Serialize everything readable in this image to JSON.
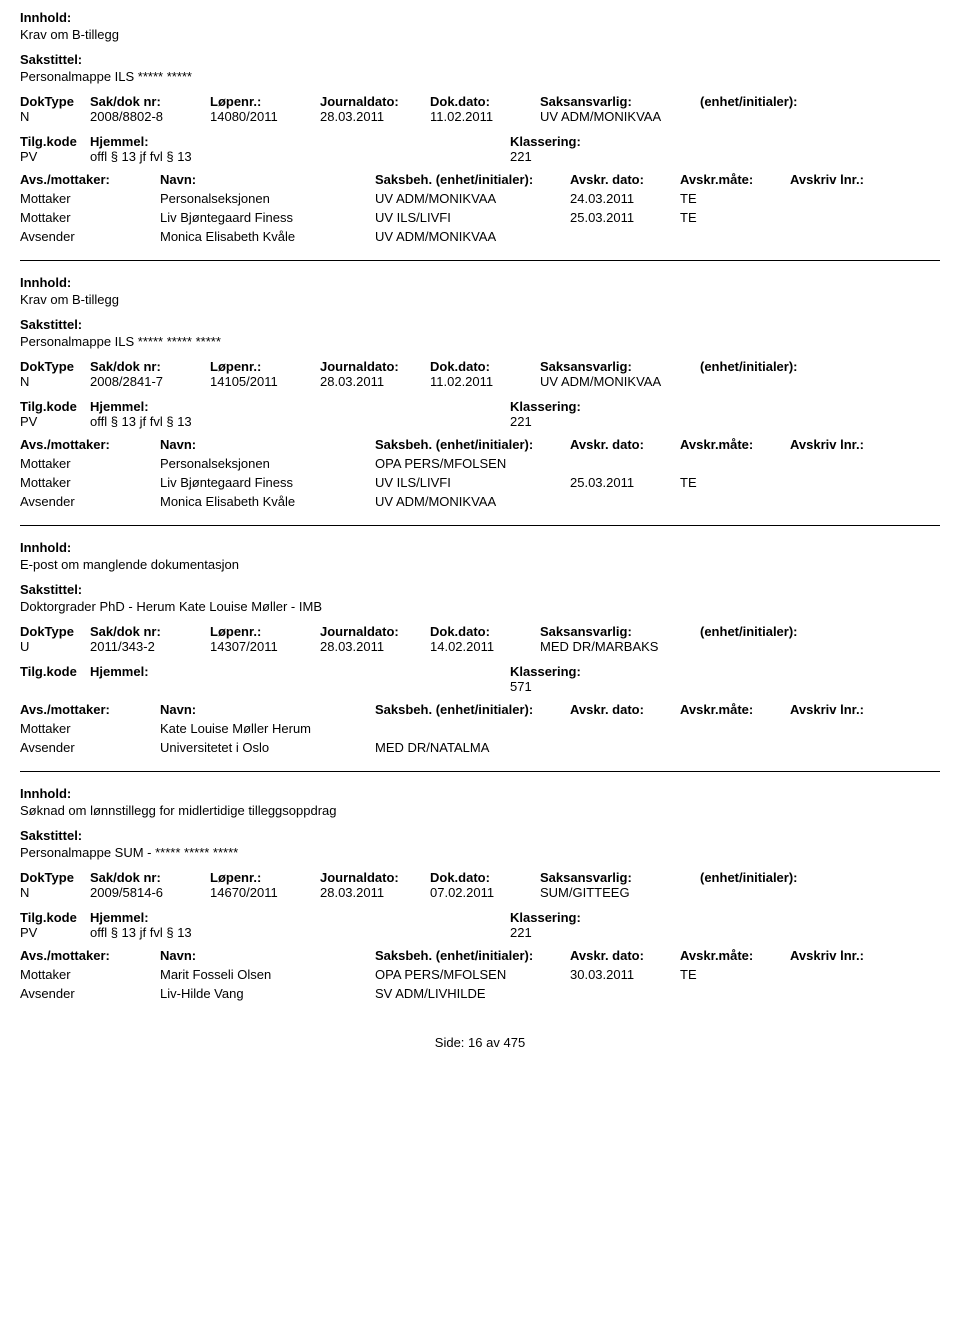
{
  "labels": {
    "innhold": "Innhold:",
    "sakstittel": "Sakstittel:",
    "doktype": "DokType",
    "sakdoknr": "Sak/dok nr:",
    "lopenr": "Løpenr.:",
    "journaldato": "Journaldato:",
    "dokdato": "Dok.dato:",
    "saksansvarlig": "Saksansvarlig:",
    "enhetinit": "(enhet/initialer):",
    "tilgkode": "Tilg.kode",
    "hjemmel": "Hjemmel:",
    "klassering": "Klassering:",
    "avsmottaker": "Avs./mottaker:",
    "navn": "Navn:",
    "saksbeh": "Saksbeh.",
    "saksbeh_suffix": "(enhet/initialer):",
    "avskrdato": "Avskr. dato:",
    "avskrmate": "Avskr.måte:",
    "avskrivlnr": "Avskriv lnr.:",
    "side": "Side:",
    "av": "av"
  },
  "page": {
    "current": "16",
    "total": "475"
  },
  "records": [
    {
      "innhold": "Krav om B-tillegg",
      "sakstittel": "Personalmappe ILS ***** *****",
      "doktype": "N",
      "sakdoknr": "2008/8802-8",
      "lopenr": "14080/2011",
      "journaldato": "28.03.2011",
      "dokdato": "11.02.2011",
      "saksansvarlig": "UV ADM/MONIKVAA",
      "tilgkode": "PV",
      "hjemmel": "offl § 13 jf fvl § 13",
      "klassering": "221",
      "parties": [
        {
          "role": "Mottaker",
          "name": "Personalseksjonen",
          "saksbeh": "UV ADM/MONIKVAA",
          "avskrdato": "24.03.2011",
          "avskrmate": "TE"
        },
        {
          "role": "Mottaker",
          "name": "Liv Bjøntegaard Finess",
          "saksbeh": "UV ILS/LIVFI",
          "avskrdato": "25.03.2011",
          "avskrmate": "TE"
        },
        {
          "role": "Avsender",
          "name": "Monica Elisabeth Kvåle",
          "saksbeh": "UV ADM/MONIKVAA",
          "avskrdato": "",
          "avskrmate": ""
        }
      ]
    },
    {
      "innhold": "Krav om B-tillegg",
      "sakstittel": "Personalmappe ILS ***** ***** *****",
      "doktype": "N",
      "sakdoknr": "2008/2841-7",
      "lopenr": "14105/2011",
      "journaldato": "28.03.2011",
      "dokdato": "11.02.2011",
      "saksansvarlig": "UV ADM/MONIKVAA",
      "tilgkode": "PV",
      "hjemmel": "offl § 13 jf fvl § 13",
      "klassering": "221",
      "parties": [
        {
          "role": "Mottaker",
          "name": "Personalseksjonen",
          "saksbeh": "OPA PERS/MFOLSEN",
          "avskrdato": "",
          "avskrmate": ""
        },
        {
          "role": "Mottaker",
          "name": "Liv Bjøntegaard Finess",
          "saksbeh": "UV ILS/LIVFI",
          "avskrdato": "25.03.2011",
          "avskrmate": "TE"
        },
        {
          "role": "Avsender",
          "name": "Monica Elisabeth Kvåle",
          "saksbeh": "UV ADM/MONIKVAA",
          "avskrdato": "",
          "avskrmate": ""
        }
      ]
    },
    {
      "innhold": "E-post om manglende dokumentasjon",
      "sakstittel": "Doktorgrader PhD - Herum Kate Louise Møller - IMB",
      "doktype": "U",
      "sakdoknr": "2011/343-2",
      "lopenr": "14307/2011",
      "journaldato": "28.03.2011",
      "dokdato": "14.02.2011",
      "saksansvarlig": "MED DR/MARBAKS",
      "tilgkode": "",
      "hjemmel": "",
      "klassering": "571",
      "parties": [
        {
          "role": "Mottaker",
          "name": "Kate Louise Møller Herum",
          "saksbeh": "",
          "avskrdato": "",
          "avskrmate": ""
        },
        {
          "role": "Avsender",
          "name": "Universitetet i Oslo",
          "saksbeh": "MED DR/NATALMA",
          "avskrdato": "",
          "avskrmate": ""
        }
      ]
    },
    {
      "innhold": "Søknad om lønnstillegg for midlertidige tilleggsoppdrag",
      "sakstittel": "Personalmappe SUM - ***** ***** *****",
      "doktype": "N",
      "sakdoknr": "2009/5814-6",
      "lopenr": "14670/2011",
      "journaldato": "28.03.2011",
      "dokdato": "07.02.2011",
      "saksansvarlig": "SUM/GITTEEG",
      "tilgkode": "PV",
      "hjemmel": "offl § 13 jf fvl § 13",
      "klassering": "221",
      "parties": [
        {
          "role": "Mottaker",
          "name": "Marit Fosseli Olsen",
          "saksbeh": "OPA PERS/MFOLSEN",
          "avskrdato": "30.03.2011",
          "avskrmate": "TE"
        },
        {
          "role": "Avsender",
          "name": "Liv-Hilde Vang",
          "saksbeh": "SV ADM/LIVHILDE",
          "avskrdato": "",
          "avskrmate": ""
        }
      ],
      "last": true
    }
  ]
}
